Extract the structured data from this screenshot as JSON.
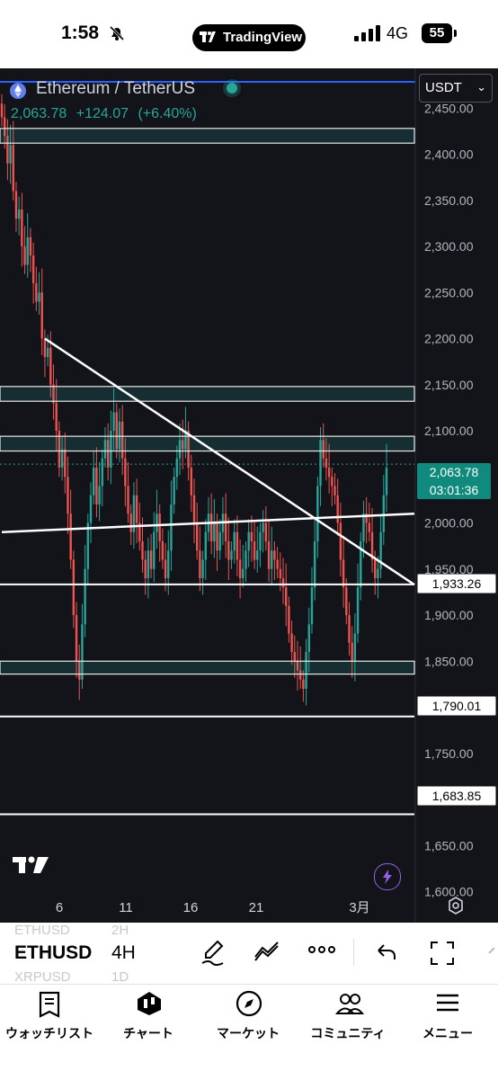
{
  "status_bar": {
    "time": "1:58",
    "app_name": "TradingView",
    "network": "4G",
    "battery": "55"
  },
  "chart": {
    "symbol_title": "Ethereum / TetherUS",
    "last_price": "2,063.78",
    "change": "+124.07",
    "change_pct": "(+6.40%)",
    "currency": "USDT",
    "current_price_tag": "2,063.78",
    "countdown": "03:01:36",
    "tags": [
      "1,933.26",
      "1,790.01",
      "1,683.85"
    ],
    "y_ticks": [
      "2,450.00",
      "2,400.00",
      "2,350.00",
      "2,300.00",
      "2,250.00",
      "2,200.00",
      "2,150.00",
      "2,100.00",
      "2,050.00",
      "2,000.00",
      "1,950.00",
      "1,900.00",
      "1,850.00",
      "1,800.00",
      "1,750.00",
      "1,700.00",
      "1,650.00",
      "1,600.00"
    ],
    "x_ticks": [
      "6",
      "11",
      "16",
      "21",
      "3月"
    ],
    "colors": {
      "up": "#26a69a",
      "down": "#ef5350",
      "accent": "#2962ff"
    }
  },
  "chart_data": {
    "type": "candlestick",
    "ylim": [
      1580,
      2490
    ],
    "y_ticks": [
      2450,
      2400,
      2350,
      2300,
      2250,
      2200,
      2150,
      2100,
      2050,
      2000,
      1950,
      1900,
      1850,
      1800,
      1750,
      1700,
      1650,
      1600
    ],
    "x_labels": [
      "6",
      "11",
      "16",
      "21",
      "3月"
    ],
    "horizontal_lines": [
      1933.26,
      1790.01,
      1683.85
    ],
    "zones": [
      [
        2412,
        2428
      ],
      [
        2132,
        2148
      ],
      [
        2078,
        2094
      ],
      [
        1836,
        1850
      ]
    ],
    "trendlines": [
      {
        "from": {
          "candle": 15,
          "price": 2200
        },
        "to": {
          "candle": 160,
          "price": 1933
        }
      },
      {
        "from": {
          "candle": 0,
          "price": 1990
        },
        "to": {
          "candle": 160,
          "price": 2010
        }
      }
    ],
    "closes": [
      2440,
      2420,
      2390,
      2410,
      2360,
      2330,
      2340,
      2300,
      2280,
      2310,
      2290,
      2260,
      2240,
      2250,
      2200,
      2180,
      2190,
      2150,
      2130,
      2100,
      2060,
      2080,
      2050,
      2010,
      1960,
      1900,
      1850,
      1830,
      1890,
      1950,
      2000,
      2030,
      2060,
      2020,
      2040,
      2070,
      2090,
      2060,
      2100,
      2120,
      2080,
      2110,
      2070,
      2040,
      2010,
      1990,
      2030,
      2000,
      1980,
      1960,
      1940,
      1970,
      1950,
      1990,
      2010,
      1980,
      1960,
      1940,
      1970,
      2020,
      2050,
      2070,
      2090,
      2080,
      2100,
      2060,
      2030,
      2000,
      1970,
      1940,
      1960,
      1990,
      2010,
      1980,
      2000,
      1970,
      1990,
      2010,
      1980,
      1960,
      1970,
      1990,
      1960,
      1940,
      1950,
      1970,
      1990,
      1980,
      1960,
      1970,
      1990,
      2000,
      1980,
      1950,
      1970,
      1960,
      1950,
      1940,
      1930,
      1910,
      1880,
      1860,
      1850,
      1840,
      1830,
      1820,
      1860,
      1890,
      1930,
      1980,
      2040,
      2090,
      2070,
      2060,
      2050,
      2040,
      2030,
      2000,
      1960,
      1930,
      1900,
      1870,
      1850,
      1880,
      1930,
      1980,
      2010,
      2000,
      1990,
      1960,
      1940,
      1950,
      1990,
      2030,
      2060
    ]
  }
}
